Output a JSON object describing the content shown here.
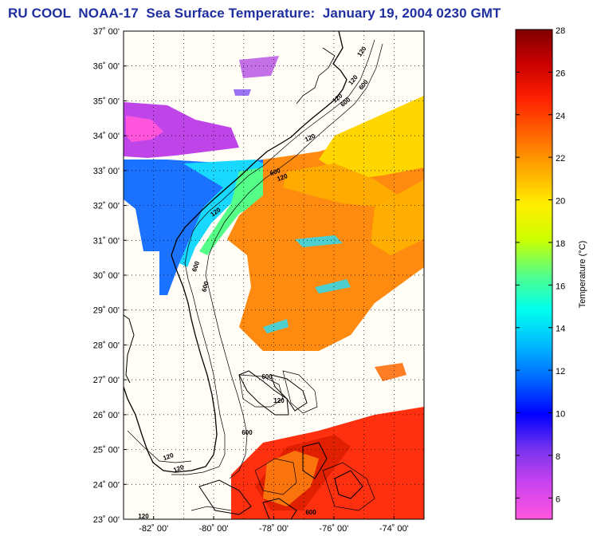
{
  "title": "RU COOL  NOAA-17  Sea Surface Temperature:  January 19, 2004 0230 GMT",
  "map": {
    "lat_range": [
      23,
      37
    ],
    "lon_range": [
      -83,
      -73
    ],
    "lat_labels": [
      "37˚ 00'",
      "36˚ 00'",
      "35˚ 00'",
      "34˚ 00'",
      "33˚ 00'",
      "32˚ 00'",
      "31˚ 00'",
      "30˚ 00'",
      "29˚ 00'",
      "28˚ 00'",
      "27˚ 00'",
      "26˚ 00'",
      "25˚ 00'",
      "24˚ 00'",
      "23˚ 00'"
    ],
    "lon_labels": [
      "-82˚ 00'",
      "-80˚ 00'",
      "-78˚ 00'",
      "-76˚ 00'",
      "-74˚ 00'"
    ],
    "contour_labels": [
      "120",
      "120",
      "600",
      "120",
      "600",
      "120",
      "600",
      "120",
      "120",
      "600",
      "600",
      "600",
      "120",
      "600",
      "120",
      "120",
      "600",
      "120"
    ]
  },
  "colorbar": {
    "label": "Temperature (°C)",
    "range": [
      5,
      28
    ],
    "ticks": [
      "28",
      "26",
      "24",
      "22",
      "20",
      "18",
      "16",
      "14",
      "12",
      "10",
      "8",
      "6"
    ],
    "colors": [
      "#ff55dd",
      "#cc44ee",
      "#7733ee",
      "#0000ff",
      "#0066ff",
      "#00bbff",
      "#00ffee",
      "#55ff88",
      "#ccff00",
      "#ffee00",
      "#ffaa00",
      "#ff6600",
      "#ff2200",
      "#cc0000",
      "#800000"
    ]
  }
}
